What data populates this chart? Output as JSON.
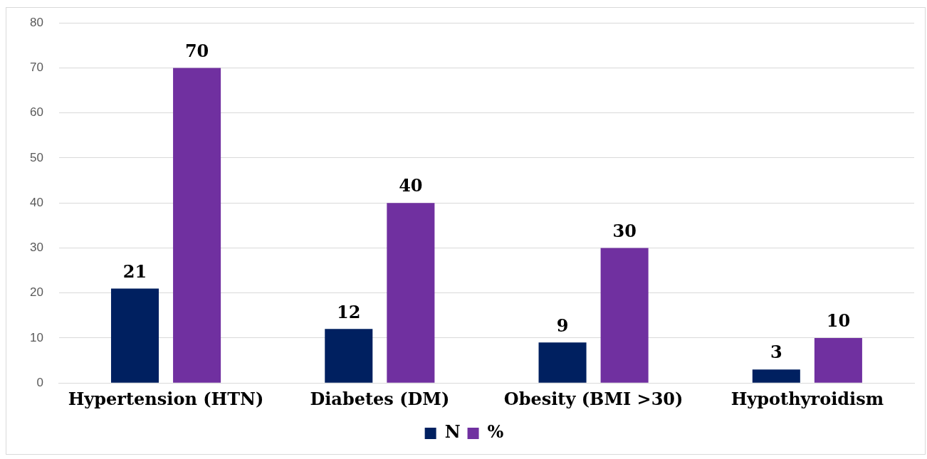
{
  "chart_data": {
    "type": "bar",
    "categories": [
      "Hypertension (HTN)",
      "Diabetes (DM)",
      "Obesity (BMI >30)",
      "Hypothyroidism"
    ],
    "series": [
      {
        "name": "N",
        "color": "#002060",
        "values": [
          21,
          12,
          9,
          3
        ]
      },
      {
        "name": "%",
        "color": "#7030a0",
        "values": [
          70,
          40,
          30,
          10
        ]
      }
    ],
    "ylim": [
      0,
      80
    ],
    "yticks": [
      0,
      10,
      20,
      30,
      40,
      50,
      60,
      70,
      80
    ],
    "grid": "y",
    "legend": "bottom",
    "data_labels": true
  }
}
